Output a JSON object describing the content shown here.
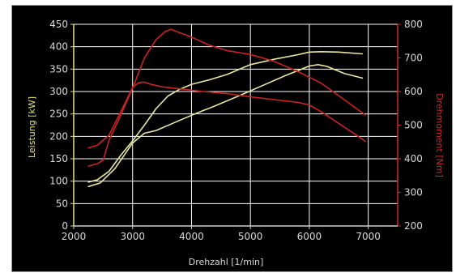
{
  "chart_data": {
    "type": "line",
    "xlabel": "Drehzahl [1/min]",
    "ylabel_left": "Leistung [kW]",
    "ylabel_right": "Drehmoment [Nm]",
    "xlim": [
      2000,
      7500
    ],
    "ylim_left": [
      0,
      450
    ],
    "ylim_right": [
      200,
      800
    ],
    "x_ticks": [
      2000,
      3000,
      4000,
      5000,
      6000,
      7000
    ],
    "y_ticks_left": [
      0,
      50,
      100,
      150,
      200,
      250,
      300,
      350,
      400,
      450
    ],
    "y_ticks_right": [
      200,
      300,
      400,
      500,
      600,
      700,
      800
    ],
    "grid": true,
    "colors": {
      "power": "#e8e8a0",
      "torque": "#cc2222",
      "grid": "#ffffff",
      "axis_left": "#e6e07a",
      "axis_right": "#cc2a2a"
    },
    "series": [
      {
        "axis": "left",
        "color": "#e8e8a0",
        "x": [
          2250,
          2400,
          2600,
          2800,
          3000,
          3200,
          3400,
          3600,
          3800,
          4000,
          4300,
          4600,
          5000,
          5400,
          5800,
          6000,
          6200,
          6500,
          6900
        ],
        "y": [
          98,
          103,
          122,
          158,
          190,
          225,
          262,
          290,
          305,
          316,
          326,
          338,
          360,
          372,
          382,
          388,
          389,
          388,
          384
        ]
      },
      {
        "axis": "left",
        "color": "#e8e8a0",
        "x": [
          2250,
          2450,
          2700,
          3000,
          3200,
          3400,
          3700,
          4000,
          4400,
          4800,
          5200,
          5600,
          6000,
          6150,
          6300,
          6600,
          6900
        ],
        "y": [
          88,
          96,
          128,
          185,
          207,
          213,
          230,
          247,
          268,
          290,
          313,
          336,
          357,
          360,
          356,
          340,
          330
        ]
      },
      {
        "axis": "right",
        "color": "#cc2222",
        "x": [
          2250,
          2400,
          2500,
          2600,
          2800,
          3000,
          3200,
          3400,
          3550,
          3650,
          3800,
          4000,
          4300,
          4600,
          5000,
          5400,
          5800,
          6200,
          6600,
          6950
        ],
        "y": [
          378,
          385,
          396,
          455,
          530,
          610,
          700,
          755,
          778,
          785,
          775,
          762,
          738,
          722,
          710,
          690,
          660,
          625,
          575,
          530
        ]
      },
      {
        "axis": "right",
        "color": "#cc2222",
        "x": [
          2250,
          2400,
          2600,
          2800,
          3000,
          3100,
          3200,
          3300,
          3500,
          3800,
          4200,
          4600,
          5000,
          5400,
          5800,
          6000,
          6200,
          6500,
          6800,
          6950
        ],
        "y": [
          432,
          440,
          470,
          540,
          612,
          626,
          628,
          622,
          614,
          608,
          600,
          594,
          584,
          576,
          568,
          560,
          540,
          505,
          470,
          452
        ]
      }
    ]
  }
}
